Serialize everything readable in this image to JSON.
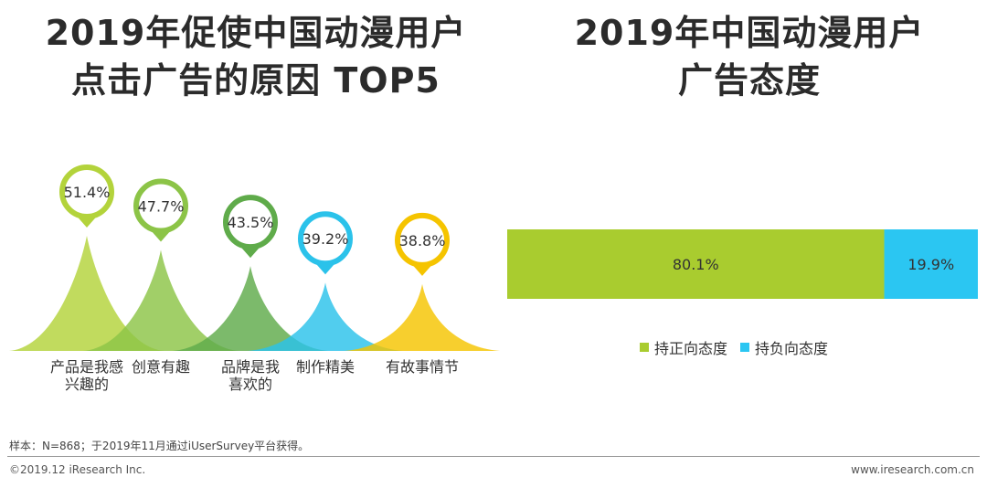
{
  "left_title": {
    "line1": "2019年促使中国动漫用户",
    "line2": "点击广告的原因 TOP5"
  },
  "right_title": {
    "line1": "2019年中国动漫用户",
    "line2": "广告态度"
  },
  "chart_data": [
    {
      "type": "bar",
      "title": "2019年促使中国动漫用户点击广告的原因 TOP5",
      "categories": [
        "产品是我感兴趣的",
        "创意有趣",
        "品牌是我喜欢的",
        "制作精美",
        "有故事情节"
      ],
      "category_labels": [
        [
          "产品是我感",
          "兴趣的"
        ],
        [
          "创意有趣"
        ],
        [
          "品牌是我",
          "喜欢的"
        ],
        [
          "制作精美"
        ],
        [
          "有故事情节"
        ]
      ],
      "values": [
        51.4,
        47.7,
        43.5,
        39.2,
        38.8
      ],
      "value_labels": [
        "51.4%",
        "47.7%",
        "43.5%",
        "39.2%",
        "38.8%"
      ],
      "colors": [
        "#b3d33b",
        "#8cc447",
        "#5fab4a",
        "#2bc2ea",
        "#f5c400"
      ],
      "unit": "%"
    },
    {
      "type": "bar",
      "orientation": "horizontal-stacked",
      "title": "2019年中国动漫用户广告态度",
      "series": [
        {
          "name": "持正向态度",
          "values": [
            80.1
          ],
          "label": "80.1%",
          "color": "#a9cc2f"
        },
        {
          "name": "持负向态度",
          "values": [
            19.9
          ],
          "label": "19.9%",
          "color": "#2bc6f2"
        }
      ],
      "unit": "%"
    }
  ],
  "footer": {
    "note": "样本：N=868；于2019年11月通过iUserSurvey平台获得。",
    "copyright": "©2019.12 iResearch Inc.",
    "website": "www.iresearch.com.cn"
  }
}
